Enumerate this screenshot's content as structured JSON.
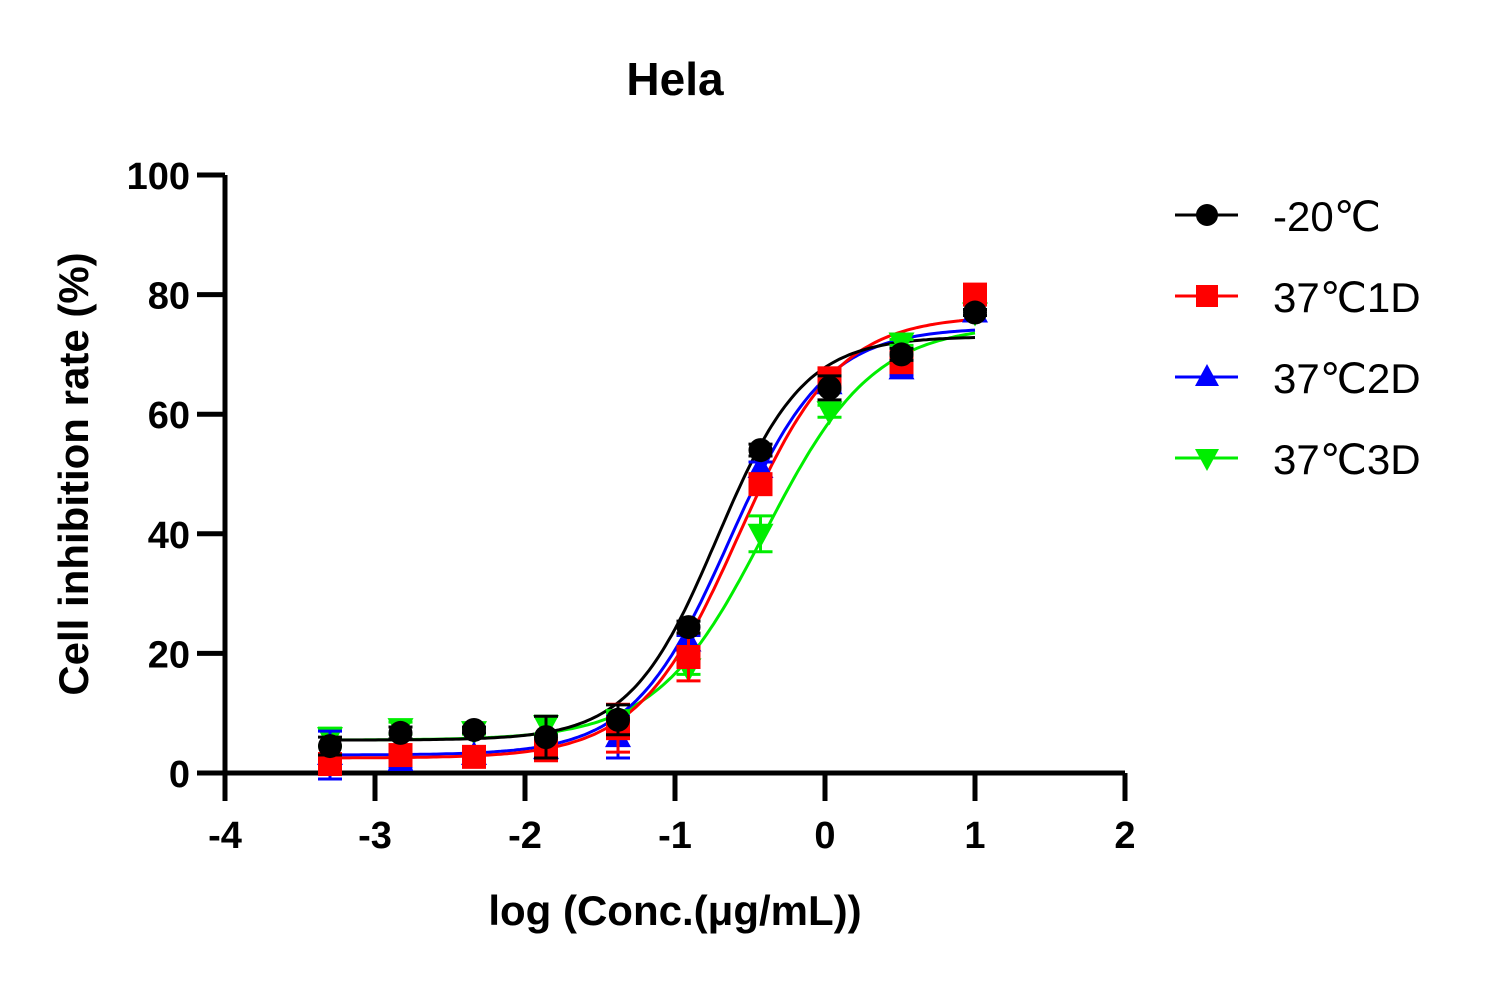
{
  "chart_data": {
    "type": "scatter",
    "title": "Hela",
    "xlabel": "log (Conc.(μg/mL))",
    "ylabel": "Cell inhibition rate (%)",
    "xlim": [
      -4,
      2
    ],
    "ylim": [
      0,
      100
    ],
    "xticks": [
      -4,
      -3,
      -2,
      -1,
      0,
      1,
      2
    ],
    "yticks": [
      0,
      20,
      40,
      60,
      80,
      100
    ],
    "grid": false,
    "legend_position": "right",
    "x": [
      -3.3,
      -2.83,
      -2.34,
      -1.86,
      -1.38,
      -0.91,
      -0.43,
      0.03,
      0.51,
      1.0
    ],
    "series": [
      {
        "name": "-20℃",
        "color": "#000000",
        "marker": "circle",
        "values": [
          4.5,
          6.7,
          7.2,
          6.0,
          8.9,
          24.4,
          54.0,
          64.4,
          70.0,
          77.0
        ],
        "errors": [
          1.5,
          1.0,
          0.5,
          3.5,
          2.5,
          1.0,
          1.0,
          2.0,
          1.0,
          0.5
        ],
        "fit": {
          "bottom": 5.5,
          "top": 73,
          "logEC50": -0.72,
          "hill": 1.5
        }
      },
      {
        "name": "37℃1D",
        "color": "#ff0000",
        "marker": "square",
        "values": [
          1.5,
          3.0,
          2.7,
          3.8,
          7.5,
          19.4,
          48.3,
          66.0,
          68.7,
          80.0
        ],
        "errors": [
          1.0,
          1.0,
          0.5,
          1.5,
          4.0,
          4.0,
          1.0,
          1.5,
          1.0,
          0.5
        ],
        "fit": {
          "bottom": 2.5,
          "top": 76.5,
          "logEC50": -0.58,
          "hill": 1.3
        }
      },
      {
        "name": "37℃2D",
        "color": "#0000ff",
        "marker": "triangle-up",
        "values": [
          3.0,
          2.0,
          3.0,
          4.0,
          6.0,
          22.0,
          51.0,
          65.0,
          67.5,
          77.0
        ],
        "errors": [
          4.0,
          1.0,
          0.5,
          1.0,
          3.5,
          1.0,
          1.0,
          1.0,
          1.0,
          0.5
        ],
        "fit": {
          "bottom": 3.0,
          "top": 74.5,
          "logEC50": -0.64,
          "hill": 1.35
        }
      },
      {
        "name": "37℃3D",
        "color": "#00ee00",
        "marker": "triangle-down",
        "values": [
          6.0,
          7.5,
          7.0,
          8.0,
          9.0,
          17.5,
          40.0,
          60.5,
          72.0,
          77.0
        ],
        "errors": [
          1.5,
          1.0,
          0.5,
          1.5,
          1.0,
          1.0,
          3.0,
          1.0,
          0.5,
          0.5
        ],
        "fit": {
          "bottom": 5.5,
          "top": 75,
          "logEC50": -0.4,
          "hill": 1.2
        }
      }
    ]
  }
}
